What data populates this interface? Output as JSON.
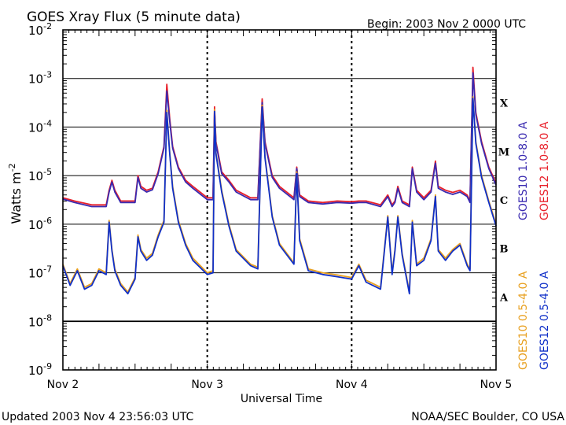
{
  "header": {
    "title": "GOES Xray Flux (5 minute data)",
    "begin": "Begin:  2003 Nov 2 0000 UTC"
  },
  "footer": {
    "updated": "Updated 2003 Nov  4 23:56:03 UTC",
    "credit": "NOAA/SEC Boulder, CO USA"
  },
  "chart_data": {
    "type": "line",
    "title": "GOES Xray Flux (5 minute data)",
    "xlabel": "Universal Time",
    "ylabel": "Watts m-2",
    "ylabel_parts": {
      "base": "Watts m",
      "exponent": "-2"
    },
    "y_scale": "log",
    "y_ticks": [
      {
        "exp": "-2",
        "value": 0.01
      },
      {
        "exp": "-3",
        "value": 0.001
      },
      {
        "exp": "-4",
        "value": 0.0001
      },
      {
        "exp": "-5",
        "value": 1e-05
      },
      {
        "exp": "-6",
        "value": 1e-06
      },
      {
        "exp": "-7",
        "value": 1e-07
      },
      {
        "exp": "-8",
        "value": 1e-08
      },
      {
        "exp": "-9",
        "value": 1e-09
      }
    ],
    "ylim": [
      1e-09,
      0.01
    ],
    "x_ticks": [
      "Nov 2",
      "Nov 3",
      "Nov 4",
      "Nov 5"
    ],
    "x_unit": "days since 2003 Nov 2 0000 UTC",
    "xlim": [
      0,
      3
    ],
    "flare_classes": [
      {
        "label": "X",
        "value": 0.0001
      },
      {
        "label": "M",
        "value": 1e-05
      },
      {
        "label": "C",
        "value": 1e-06
      },
      {
        "label": "B",
        "value": 1e-07
      },
      {
        "label": "A",
        "value": 1e-08
      }
    ],
    "grid": true,
    "legend_position": "right, rotated",
    "series": [
      {
        "name": "GOES12 1.0-8.0 A",
        "color": "#e8202a",
        "x": [
          0,
          0.08,
          0.2,
          0.3,
          0.32,
          0.34,
          0.36,
          0.4,
          0.5,
          0.52,
          0.54,
          0.58,
          0.62,
          0.66,
          0.7,
          0.72,
          0.74,
          0.76,
          0.8,
          0.85,
          0.9,
          1.0,
          1.04,
          1.05,
          1.06,
          1.1,
          1.15,
          1.2,
          1.3,
          1.35,
          1.38,
          1.4,
          1.45,
          1.5,
          1.6,
          1.62,
          1.64,
          1.7,
          1.8,
          1.9,
          2.0,
          2.05,
          2.1,
          2.2,
          2.25,
          2.28,
          2.3,
          2.32,
          2.35,
          2.4,
          2.42,
          2.45,
          2.5,
          2.55,
          2.58,
          2.6,
          2.65,
          2.7,
          2.75,
          2.8,
          2.82,
          2.84,
          2.86,
          2.9,
          2.95,
          3.0
        ],
        "y": [
          3.5e-06,
          3e-06,
          2.5e-06,
          2.5e-06,
          5e-06,
          8e-06,
          5e-06,
          3e-06,
          3e-06,
          1e-05,
          6e-06,
          5e-06,
          5.5e-06,
          1.2e-05,
          4e-05,
          0.00076,
          0.00015,
          4e-05,
          1.5e-05,
          8e-06,
          6e-06,
          3.5e-06,
          3.5e-06,
          0.00026,
          5e-05,
          1.2e-05,
          8e-06,
          5e-06,
          3.5e-06,
          3.5e-06,
          0.00038,
          5e-05,
          1e-05,
          6e-06,
          3.5e-06,
          1.5e-05,
          4e-06,
          3e-06,
          2.8e-06,
          3e-06,
          2.9e-06,
          3e-06,
          3e-06,
          2.5e-06,
          4e-06,
          2.5e-06,
          3e-06,
          6e-06,
          3e-06,
          2.5e-06,
          1.5e-05,
          5e-06,
          3.5e-06,
          5e-06,
          2e-05,
          6e-06,
          5e-06,
          4.5e-06,
          5e-06,
          4e-06,
          3e-06,
          0.0017,
          0.0002,
          5e-05,
          1.5e-05,
          7e-06
        ]
      },
      {
        "name": "GOES10 1.0-8.0 A",
        "color": "#3a2ab0",
        "x": [
          0,
          0.08,
          0.2,
          0.3,
          0.32,
          0.34,
          0.36,
          0.4,
          0.5,
          0.52,
          0.54,
          0.58,
          0.62,
          0.66,
          0.7,
          0.72,
          0.74,
          0.76,
          0.8,
          0.85,
          0.9,
          1.0,
          1.04,
          1.05,
          1.06,
          1.1,
          1.15,
          1.2,
          1.3,
          1.35,
          1.38,
          1.4,
          1.45,
          1.5,
          1.6,
          1.62,
          1.64,
          1.7,
          1.8,
          1.9,
          2.0,
          2.05,
          2.1,
          2.2,
          2.25,
          2.28,
          2.3,
          2.32,
          2.35,
          2.4,
          2.42,
          2.45,
          2.5,
          2.55,
          2.58,
          2.6,
          2.65,
          2.7,
          2.75,
          2.8,
          2.82,
          2.84,
          2.86,
          2.9,
          2.95,
          3.0
        ],
        "y": [
          3.3e-06,
          2.8e-06,
          2.3e-06,
          2.3e-06,
          4.6e-06,
          7.4e-06,
          4.6e-06,
          2.8e-06,
          2.8e-06,
          9.2e-06,
          5.5e-06,
          4.6e-06,
          5.1e-06,
          1.1e-05,
          3.7e-05,
          0.00055,
          0.00013,
          3.7e-05,
          1.4e-05,
          7.4e-06,
          5.5e-06,
          3.2e-06,
          3.2e-06,
          0.00021,
          4.6e-05,
          1.1e-05,
          7.4e-06,
          4.6e-06,
          3.2e-06,
          3.2e-06,
          0.00032,
          4.6e-05,
          9.2e-06,
          5.5e-06,
          3.2e-06,
          1.4e-05,
          3.7e-06,
          2.8e-06,
          2.6e-06,
          2.8e-06,
          2.7e-06,
          2.8e-06,
          2.8e-06,
          2.3e-06,
          3.7e-06,
          2.3e-06,
          2.8e-06,
          5.5e-06,
          2.8e-06,
          2.3e-06,
          1.4e-05,
          4.6e-06,
          3.2e-06,
          4.6e-06,
          1.8e-05,
          5.5e-06,
          4.6e-06,
          4.1e-06,
          4.6e-06,
          3.7e-06,
          2.8e-06,
          0.0013,
          0.00018,
          4.6e-05,
          1.4e-05,
          6.4e-06
        ]
      },
      {
        "name": "GOES10 0.5-4.0 A",
        "color": "#e8a020",
        "x": [
          0,
          0.05,
          0.1,
          0.15,
          0.2,
          0.25,
          0.3,
          0.32,
          0.34,
          0.36,
          0.4,
          0.45,
          0.5,
          0.52,
          0.54,
          0.58,
          0.62,
          0.66,
          0.7,
          0.72,
          0.74,
          0.76,
          0.8,
          0.85,
          0.9,
          1.0,
          1.04,
          1.05,
          1.06,
          1.1,
          1.15,
          1.2,
          1.3,
          1.35,
          1.38,
          1.4,
          1.45,
          1.5,
          1.6,
          1.62,
          1.64,
          1.7,
          1.8,
          1.9,
          2.0,
          2.05,
          2.1,
          2.2,
          2.25,
          2.28,
          2.3,
          2.32,
          2.35,
          2.4,
          2.42,
          2.45,
          2.5,
          2.55,
          2.58,
          2.6,
          2.65,
          2.7,
          2.75,
          2.8,
          2.82,
          2.84,
          2.86,
          2.9,
          2.95,
          3.0
        ],
        "y": [
          1.5e-07,
          6e-08,
          1.2e-07,
          5e-08,
          6e-08,
          1.2e-07,
          1e-07,
          1.2e-06,
          3e-07,
          1.2e-07,
          6e-08,
          4e-08,
          8e-08,
          6e-07,
          3e-07,
          2e-07,
          2.5e-07,
          6e-07,
          1.2e-06,
          0.00022,
          3e-05,
          6e-06,
          1.2e-06,
          4e-07,
          2e-07,
          1e-07,
          1.1e-07,
          0.00023,
          3e-05,
          5e-06,
          1e-06,
          3e-07,
          1.5e-07,
          1.3e-07,
          0.00028,
          2.5e-05,
          1.5e-06,
          4e-07,
          1.6e-07,
          1.2e-05,
          5e-07,
          1.2e-07,
          1e-07,
          9e-08,
          8e-08,
          1.5e-07,
          7e-08,
          5e-08,
          1.5e-06,
          1e-07,
          3e-07,
          1.5e-06,
          2.5e-07,
          4e-08,
          1.2e-06,
          1.5e-07,
          2e-07,
          5e-07,
          4e-06,
          3e-07,
          2e-07,
          3e-07,
          4e-07,
          1.5e-07,
          1.2e-07,
          0.00042,
          5e-05,
          1e-05,
          3e-06,
          1e-06
        ]
      },
      {
        "name": "GOES12 0.5-4.0 A",
        "color": "#1030c8",
        "x": [
          0,
          0.05,
          0.1,
          0.15,
          0.2,
          0.25,
          0.3,
          0.32,
          0.34,
          0.36,
          0.4,
          0.45,
          0.5,
          0.52,
          0.54,
          0.58,
          0.62,
          0.66,
          0.7,
          0.72,
          0.74,
          0.76,
          0.8,
          0.85,
          0.9,
          1.0,
          1.04,
          1.05,
          1.06,
          1.1,
          1.15,
          1.2,
          1.3,
          1.35,
          1.38,
          1.4,
          1.45,
          1.5,
          1.6,
          1.62,
          1.64,
          1.7,
          1.8,
          1.9,
          2.0,
          2.05,
          2.1,
          2.2,
          2.25,
          2.28,
          2.3,
          2.32,
          2.35,
          2.4,
          2.42,
          2.45,
          2.5,
          2.55,
          2.58,
          2.6,
          2.65,
          2.7,
          2.75,
          2.8,
          2.82,
          2.84,
          2.86,
          2.9,
          2.95,
          3.0
        ],
        "y": [
          1.4e-07,
          5.5e-08,
          1.1e-07,
          4.6e-08,
          5.5e-08,
          1.1e-07,
          9.2e-08,
          1.1e-06,
          2.8e-07,
          1.1e-07,
          5.5e-08,
          3.7e-08,
          7.4e-08,
          5.5e-07,
          2.8e-07,
          1.8e-07,
          2.3e-07,
          5.5e-07,
          1.1e-06,
          0.0002,
          2.8e-05,
          5.5e-06,
          1.1e-06,
          3.7e-07,
          1.8e-07,
          9.2e-08,
          1e-07,
          0.00021,
          2.8e-05,
          4.6e-06,
          9.2e-07,
          2.8e-07,
          1.4e-07,
          1.2e-07,
          0.00026,
          2.3e-05,
          1.4e-06,
          3.7e-07,
          1.5e-07,
          1.1e-05,
          4.6e-07,
          1.1e-07,
          9.2e-08,
          8.3e-08,
          7.4e-08,
          1.4e-07,
          6.4e-08,
          4.6e-08,
          1.4e-06,
          9.2e-08,
          2.8e-07,
          1.4e-06,
          2.3e-07,
          3.7e-08,
          1.1e-06,
          1.4e-07,
          1.8e-07,
          4.6e-07,
          3.7e-06,
          2.8e-07,
          1.8e-07,
          2.8e-07,
          3.7e-07,
          1.4e-07,
          1.1e-07,
          0.00039,
          4.6e-05,
          9.2e-06,
          2.8e-06,
          9.2e-07
        ]
      }
    ]
  }
}
